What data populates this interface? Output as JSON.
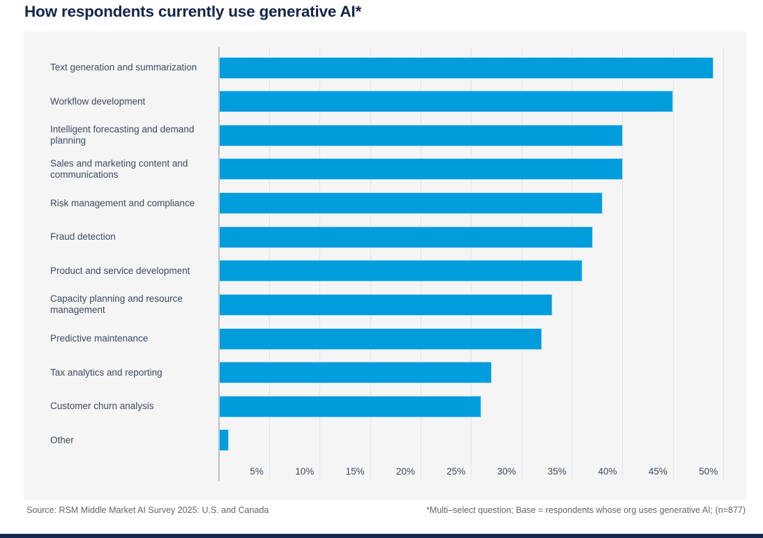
{
  "title": "How respondents currently use generative AI*",
  "footer": {
    "source": "Source: RSM Middle Market AI Survey 2025: U.S. and Canada",
    "note": "*Multi–select question; Base = respondents whose org uses generative AI; (n=877)"
  },
  "colors": {
    "bar_fill": "#009DDC",
    "bar_edge": "#A9D8F0",
    "title_navy": "#12254A",
    "label_slate": "#3D4A5E",
    "footer_gray": "#63666A",
    "panel_bg": "#F5F5F6",
    "gridline": "#E3E4E6",
    "axis_line": "#B9BDC3",
    "bottom_rule_navy": "#17294D"
  },
  "chart_data": {
    "type": "bar",
    "orientation": "horizontal",
    "title": "How respondents currently use generative AI*",
    "categories": [
      "Text generation and summarization",
      "Workflow development",
      "Intelligent forecasting and demand planning",
      "Sales and marketing content and communications",
      "Risk management and compliance",
      "Fraud detection",
      "Product and service development",
      "Capacity planning and resource management",
      "Predictive maintenance",
      "Tax analytics and reporting",
      "Customer churn analysis",
      "Other"
    ],
    "values": [
      49,
      45,
      40,
      40,
      38,
      37,
      36,
      33,
      32,
      27,
      26,
      1
    ],
    "unit": "%",
    "x_tick_labels": [
      "5%",
      "10%",
      "15%",
      "20%",
      "25%",
      "30%",
      "35%",
      "40%",
      "45%",
      "50%"
    ],
    "x_tick_values": [
      5,
      10,
      15,
      20,
      25,
      30,
      35,
      40,
      45,
      50
    ],
    "xlim": [
      0,
      50
    ],
    "grid": true,
    "legend": false
  }
}
